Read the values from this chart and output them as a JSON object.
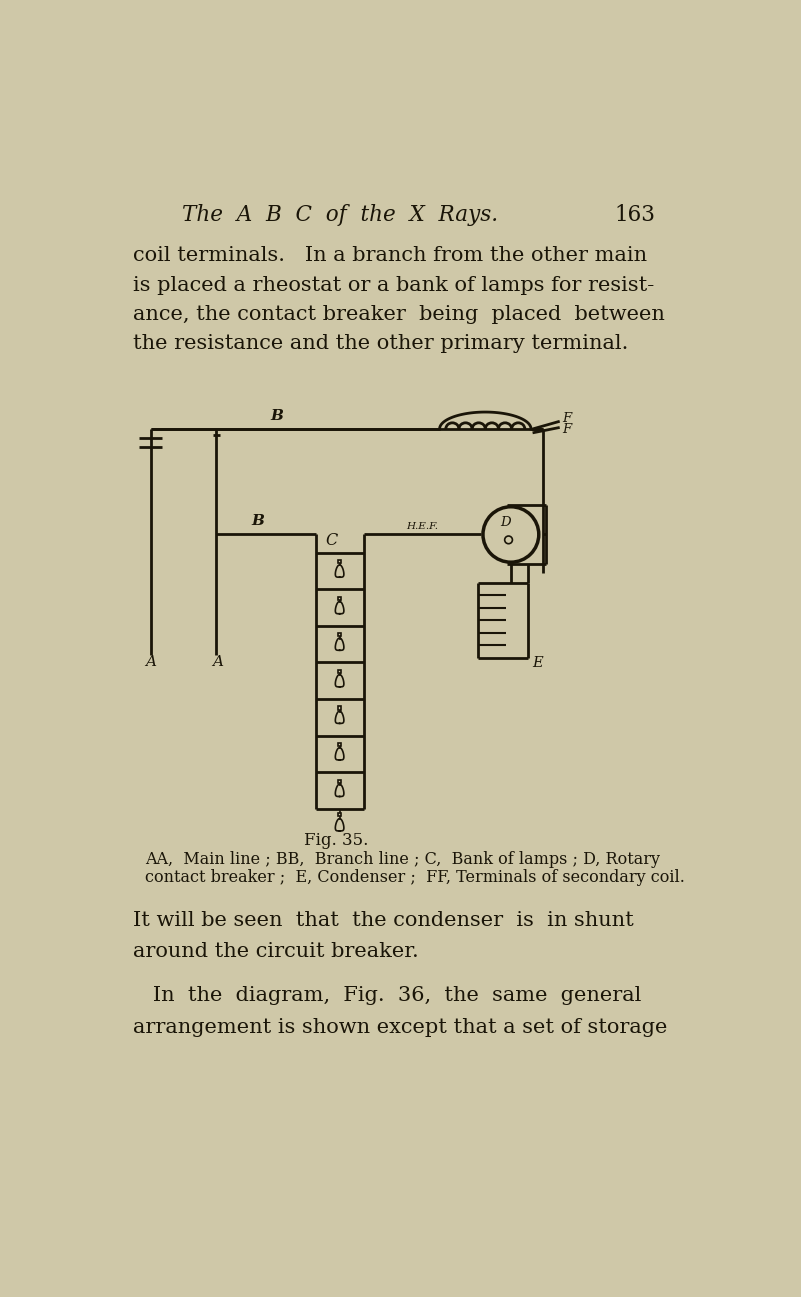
{
  "bg_color": "#cfc8a8",
  "text_color": "#1a1508",
  "page_title": "The  A  B  C  of  the  X  Rays.",
  "page_number": "163",
  "paragraph1_lines": [
    "coil terminals.   In a branch from the other main",
    "is placed a rheostat or a bank of lamps for resist-",
    "ance, the contact breaker  being  placed  between",
    "the resistance and the other primary terminal."
  ],
  "fig_caption": "Fig. 35.",
  "legend_line1": "AA,  Main line ; BB,  Branch line ; C,  Bank of lamps ; D, Rotary",
  "legend_line2": "contact breaker ;  E, Condenser ;  FF, Terminals of secondary coil.",
  "paragraph2_lines": [
    "It will be seen  that  the condenser  is  in shunt",
    "around the circuit breaker."
  ],
  "paragraph3_lines": [
    "   In  the  diagram,  Fig.  36,  the  same  general",
    "arrangement is shown except that a set of storage"
  ]
}
